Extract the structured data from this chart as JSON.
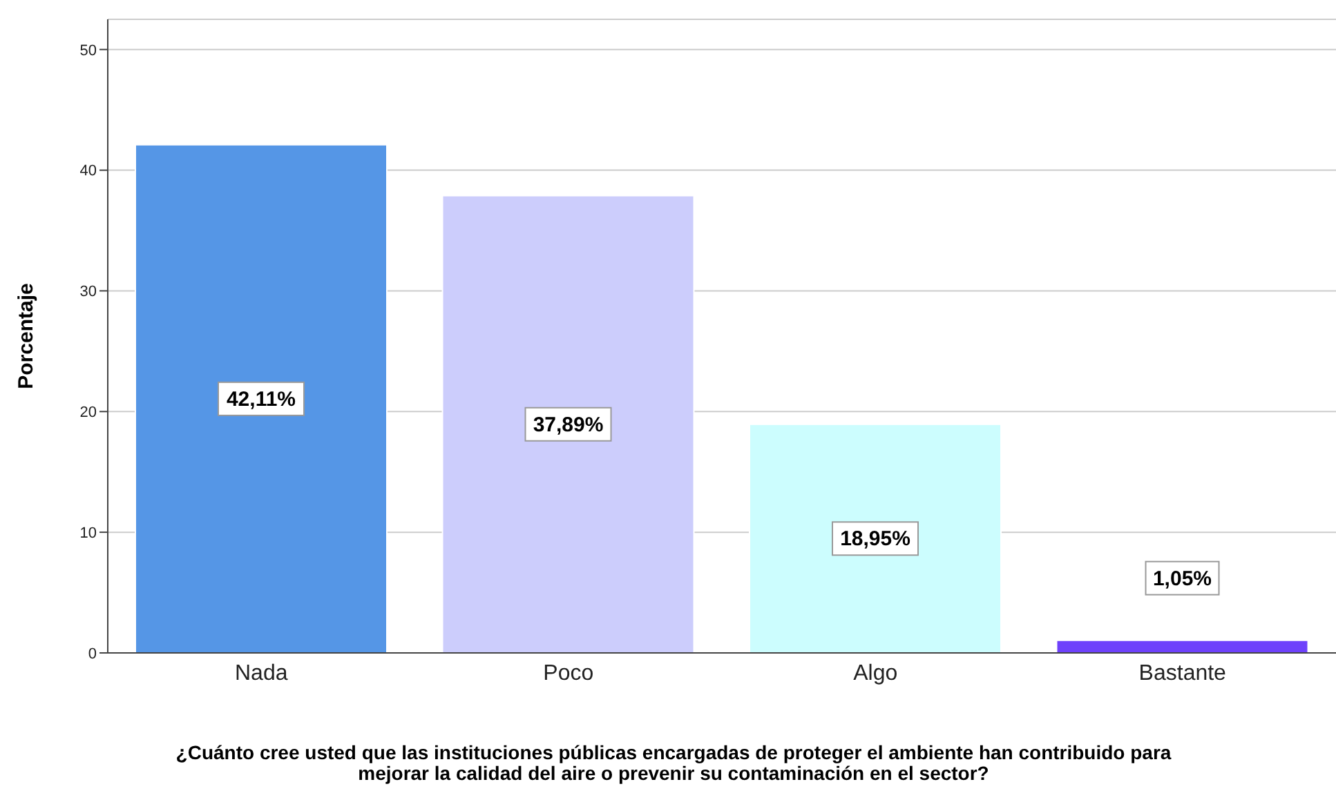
{
  "chart_data": {
    "type": "bar",
    "xlabel": "¿Cuánto cree usted que las instituciones públicas encargadas de proteger el ambiente han contribuido para\nmejorar la calidad del aire o prevenir su contaminación en el sector?",
    "ylabel": "Porcentaje",
    "categories": [
      "Nada",
      "Poco",
      "Algo",
      "Bastante"
    ],
    "values": [
      42.11,
      37.89,
      18.95,
      1.05
    ],
    "colors": [
      "#5596e6",
      "#cccdfc",
      "#ccfdfe",
      "#6e41fb"
    ],
    "value_labels": [
      "42,11%",
      "37,89%",
      "18,95%",
      "1,05%"
    ],
    "ylim": [
      0,
      52.5
    ],
    "yticks": [
      0,
      10,
      20,
      30,
      40,
      50
    ],
    "grid": "y",
    "legend": false
  }
}
